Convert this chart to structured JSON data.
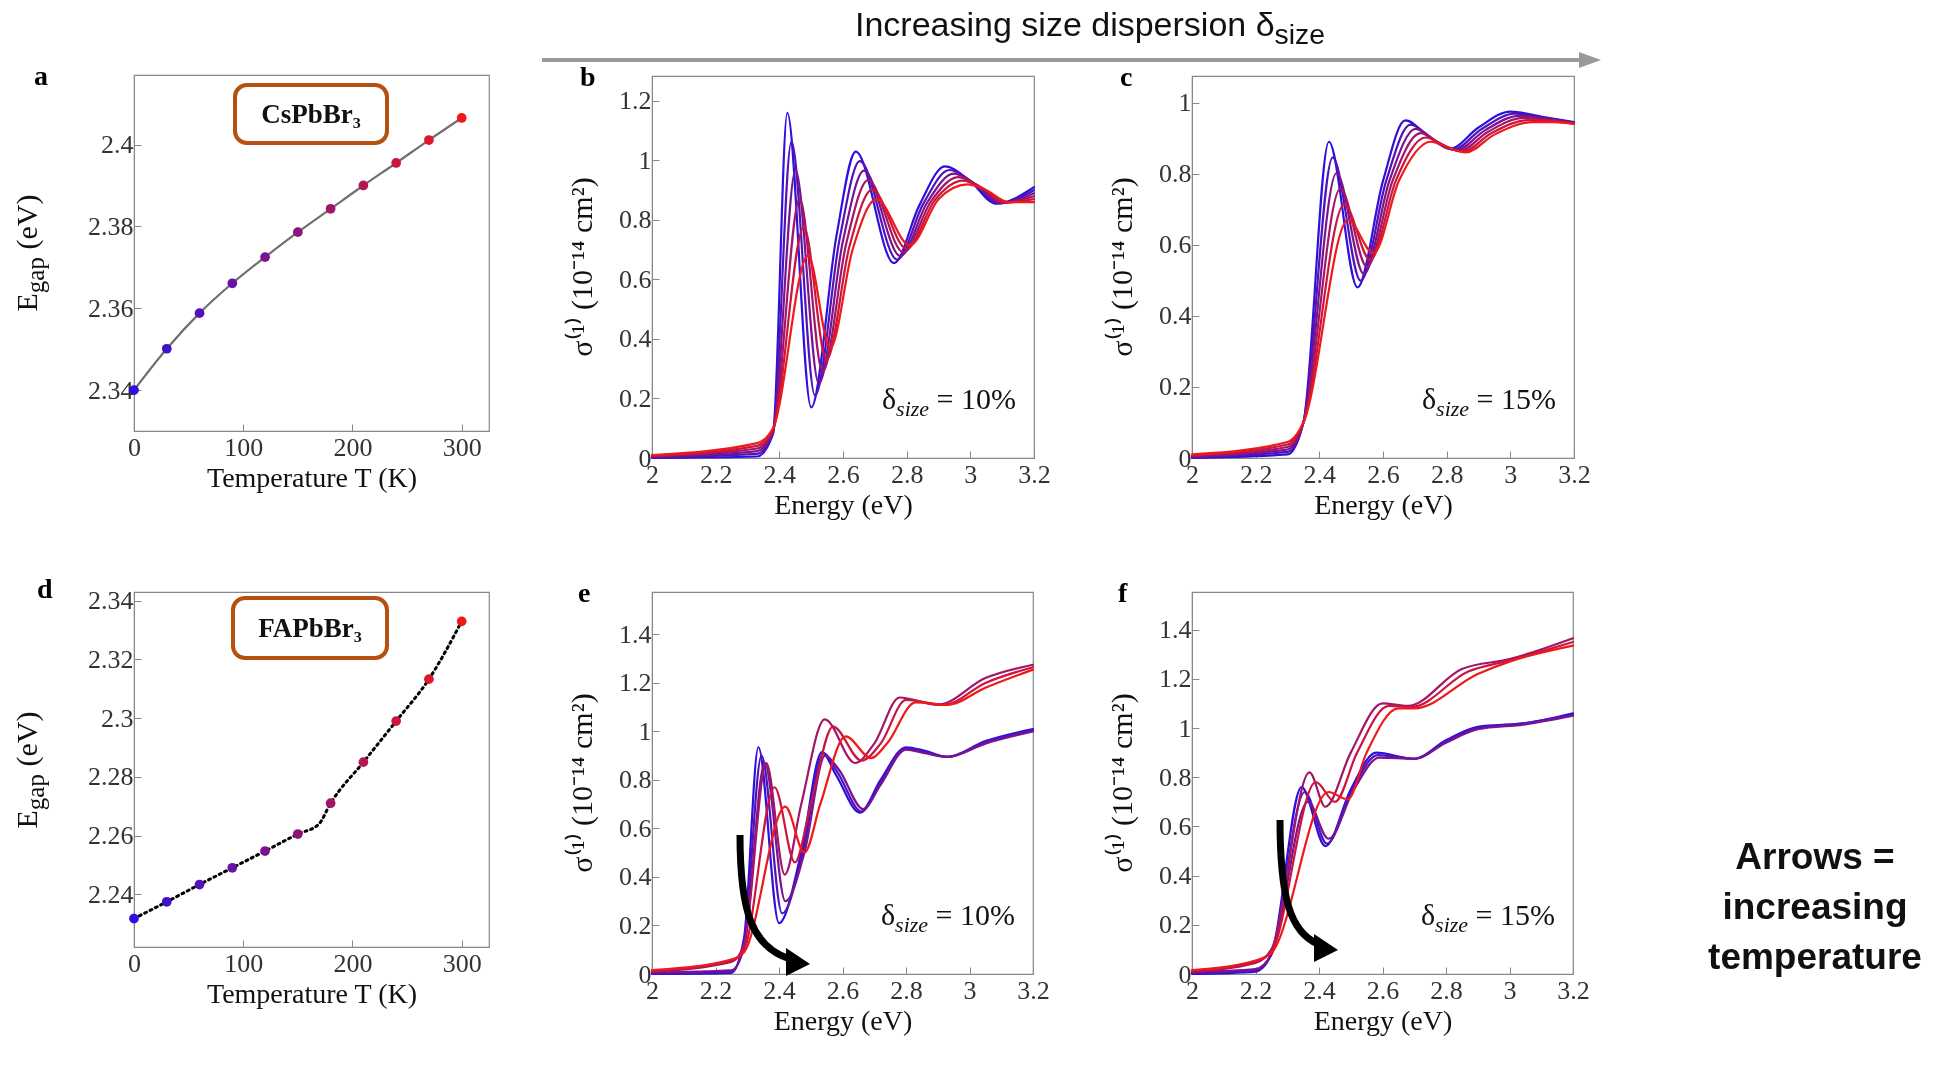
{
  "chart_data": [
    {
      "type": "scatter",
      "title": "a",
      "xlabel": "Temperature T (K)",
      "ylabel": "E$_{gap}$ (eV)",
      "annotations": [
        "CsPbBr₃"
      ],
      "x": [
        0,
        30,
        60,
        90,
        120,
        150,
        180,
        210,
        240,
        270,
        300
      ],
      "xlim": [
        0,
        325
      ],
      "xticks": [
        0,
        100,
        200,
        300
      ],
      "ylim": [
        2.33,
        2.417
      ],
      "yticks": [
        2.34,
        2.36,
        2.38,
        2.4
      ],
      "series": [
        {
          "type": "line",
          "color": "#707070",
          "line_style": "solid",
          "values": [
            2.34,
            2.3501,
            2.3588,
            2.3661,
            2.3725,
            2.3786,
            2.3843,
            2.39,
            2.3955,
            2.4011,
            2.4065
          ]
        },
        {
          "type": "scatter",
          "marker": "circle",
          "colors": [
            "#2c10e0",
            "#4011cc",
            "#5312b8",
            "#6712a4",
            "#7a1390",
            "#8e147c",
            "#a21568",
            "#b51654",
            "#c91640",
            "#dc172c",
            "#f01818"
          ],
          "values": [
            2.34,
            2.3501,
            2.3588,
            2.3661,
            2.3725,
            2.3786,
            2.3843,
            2.39,
            2.3955,
            2.4011,
            2.4065
          ]
        }
      ]
    },
    {
      "type": "line",
      "title": "b",
      "xlabel": "Energy (eV)",
      "ylabel": "σ⁽¹⁾ (10⁻¹⁴ cm²)",
      "annotations": [
        "δ$_{size}$ = 10%"
      ],
      "xlim": [
        2,
        3.2
      ],
      "xticks": [
        2,
        2.2,
        2.4,
        2.6,
        2.8,
        3,
        3.2
      ],
      "ylim": [
        0,
        1.284
      ],
      "yticks": [
        0,
        0.2,
        0.4,
        0.6,
        0.8,
        1,
        1.2
      ],
      "series": [
        {
          "color": "#2c10e0",
          "x": [
            2.0,
            2.33,
            2.38,
            2.425,
            2.5,
            2.58,
            2.64,
            2.76,
            2.84,
            2.92,
            3.0,
            3.08,
            3.2
          ],
          "values": [
            0,
            0.005,
            0.08,
            1.16,
            0.17,
            0.75,
            1.03,
            0.655,
            0.85,
            0.98,
            0.93,
            0.855,
            0.91
          ]
        },
        {
          "color": "#5312b8",
          "x": [
            2.0,
            2.33,
            2.38,
            2.438,
            2.512,
            2.59,
            2.653,
            2.77,
            2.852,
            2.934,
            3.01,
            3.088,
            3.2
          ],
          "values": [
            0.002,
            0.014,
            0.084,
            1.064,
            0.21,
            0.74,
            0.998,
            0.667,
            0.854,
            0.968,
            0.924,
            0.856,
            0.9
          ]
        },
        {
          "color": "#7a1390",
          "x": [
            2.0,
            2.33,
            2.38,
            2.451,
            2.524,
            2.6,
            2.666,
            2.78,
            2.864,
            2.948,
            3.02,
            3.096,
            3.2
          ],
          "values": [
            0.004,
            0.023,
            0.088,
            0.968,
            0.25,
            0.73,
            0.966,
            0.679,
            0.858,
            0.956,
            0.918,
            0.857,
            0.89
          ]
        },
        {
          "color": "#a21568",
          "x": [
            2.0,
            2.33,
            2.38,
            2.464,
            2.536,
            2.61,
            2.679,
            2.79,
            2.876,
            2.962,
            3.03,
            3.104,
            3.2
          ],
          "values": [
            0.006,
            0.032,
            0.092,
            0.872,
            0.29,
            0.72,
            0.934,
            0.691,
            0.862,
            0.944,
            0.912,
            0.858,
            0.88
          ]
        },
        {
          "color": "#c91640",
          "x": [
            2.0,
            2.33,
            2.38,
            2.477,
            2.548,
            2.62,
            2.692,
            2.8,
            2.888,
            2.976,
            3.04,
            3.112,
            3.2
          ],
          "values": [
            0.008,
            0.041,
            0.096,
            0.776,
            0.33,
            0.71,
            0.902,
            0.703,
            0.866,
            0.932,
            0.906,
            0.859,
            0.87
          ]
        },
        {
          "color": "#f01818",
          "x": [
            2.0,
            2.33,
            2.38,
            2.49,
            2.56,
            2.63,
            2.705,
            2.81,
            2.9,
            2.99,
            3.05,
            3.12,
            3.2
          ],
          "values": [
            0.01,
            0.05,
            0.1,
            0.68,
            0.37,
            0.7,
            0.87,
            0.715,
            0.87,
            0.92,
            0.9,
            0.86,
            0.86
          ]
        }
      ]
    },
    {
      "type": "line",
      "title": "c",
      "xlabel": "Energy (eV)",
      "ylabel": "σ⁽¹⁾ (10⁻¹⁴ cm²)",
      "annotations": [
        "δ$_{size}$ = 15%"
      ],
      "xlim": [
        2,
        3.2
      ],
      "xticks": [
        2,
        2.2,
        2.4,
        2.6,
        2.8,
        3,
        3.2
      ],
      "ylim": [
        0,
        1.075
      ],
      "yticks": [
        0,
        0.2,
        0.4,
        0.6,
        0.8,
        1
      ],
      "series": [
        {
          "color": "#2c10e0",
          "x": [
            2.0,
            2.3,
            2.35,
            2.43,
            2.52,
            2.6,
            2.67,
            2.75,
            2.81,
            2.9,
            3.0,
            3.1,
            3.2
          ],
          "values": [
            0,
            0.01,
            0.1,
            0.89,
            0.48,
            0.78,
            0.95,
            0.9,
            0.87,
            0.93,
            0.975,
            0.96,
            0.945
          ]
        },
        {
          "color": "#5312b8",
          "x": [
            2.0,
            2.3,
            2.35,
            2.442,
            2.53,
            2.61,
            2.686,
            2.76,
            2.82,
            2.91,
            3.014,
            3.108,
            3.2
          ],
          "values": [
            0.002,
            0.017,
            0.1,
            0.846,
            0.499,
            0.78,
            0.938,
            0.895,
            0.868,
            0.926,
            0.969,
            0.957,
            0.944
          ]
        },
        {
          "color": "#7a1390",
          "x": [
            2.0,
            2.3,
            2.35,
            2.454,
            2.54,
            2.62,
            2.702,
            2.77,
            2.83,
            2.92,
            3.028,
            3.116,
            3.2
          ],
          "values": [
            0.004,
            0.024,
            0.1,
            0.802,
            0.518,
            0.78,
            0.926,
            0.89,
            0.866,
            0.922,
            0.963,
            0.954,
            0.943
          ]
        },
        {
          "color": "#a21568",
          "x": [
            2.0,
            2.3,
            2.35,
            2.466,
            2.55,
            2.63,
            2.718,
            2.78,
            2.84,
            2.93,
            3.042,
            3.124,
            3.2
          ],
          "values": [
            0.006,
            0.031,
            0.1,
            0.758,
            0.538,
            0.78,
            0.914,
            0.885,
            0.864,
            0.918,
            0.957,
            0.951,
            0.942
          ]
        },
        {
          "color": "#c91640",
          "x": [
            2.0,
            2.3,
            2.35,
            2.478,
            2.56,
            2.64,
            2.734,
            2.79,
            2.85,
            2.94,
            3.056,
            3.132,
            3.2
          ],
          "values": [
            0.008,
            0.038,
            0.1,
            0.714,
            0.557,
            0.78,
            0.902,
            0.88,
            0.862,
            0.914,
            0.951,
            0.948,
            0.941
          ]
        },
        {
          "color": "#f01818",
          "x": [
            2.0,
            2.3,
            2.35,
            2.49,
            2.57,
            2.65,
            2.75,
            2.8,
            2.86,
            2.95,
            3.07,
            3.14,
            3.2
          ],
          "values": [
            0.01,
            0.045,
            0.1,
            0.67,
            0.576,
            0.78,
            0.89,
            0.875,
            0.86,
            0.91,
            0.945,
            0.945,
            0.94
          ]
        }
      ]
    },
    {
      "type": "scatter",
      "title": "d",
      "xlabel": "Temperature T (K)",
      "ylabel": "E$_{gap}$ (eV)",
      "annotations": [
        "FAPbBr₃"
      ],
      "x": [
        0,
        30,
        60,
        90,
        120,
        150,
        180,
        210,
        240,
        270,
        300
      ],
      "xlim": [
        0,
        325
      ],
      "xticks": [
        0,
        100,
        200,
        300
      ],
      "ylim": [
        2.222,
        2.343
      ],
      "yticks": [
        2.24,
        2.26,
        2.28,
        2.3,
        2.32,
        2.34
      ],
      "series": [
        {
          "type": "line",
          "color": "#000000",
          "line_style": "dotted",
          "x": [
            0,
            30,
            60,
            90,
            120,
            150,
            169,
            180,
            210,
            240,
            270,
            300
          ],
          "values": [
            2.2317,
            2.2374,
            2.2433,
            2.249,
            2.2547,
            2.2605,
            2.2638,
            2.271,
            2.285,
            2.299,
            2.3133,
            2.333
          ]
        },
        {
          "type": "scatter",
          "marker": "circle",
          "colors": [
            "#2c10e0",
            "#4011cc",
            "#5312b8",
            "#6712a4",
            "#7a1390",
            "#8e147c",
            "#a21568",
            "#b51654",
            "#c91640",
            "#dc172c",
            "#f01818"
          ],
          "values": [
            2.2317,
            2.2374,
            2.2433,
            2.249,
            2.2547,
            2.2605,
            2.271,
            2.285,
            2.299,
            2.3133,
            2.333
          ]
        }
      ]
    },
    {
      "type": "line",
      "title": "e",
      "xlabel": "Energy (eV)",
      "ylabel": "σ⁽¹⁾ (10⁻¹⁴ cm²)",
      "annotations": [
        "δ$_{size}$ = 10%"
      ],
      "xlim": [
        2,
        3.2
      ],
      "xticks": [
        2,
        2.2,
        2.4,
        2.6,
        2.8,
        3,
        3.2
      ],
      "ylim": [
        0,
        1.575
      ],
      "yticks": [
        0,
        0.2,
        0.4,
        0.6,
        0.8,
        1,
        1.2,
        1.4
      ],
      "series": [
        {
          "color": "#2c10e0",
          "x": [
            2.0,
            2.25,
            2.29,
            2.335,
            2.4,
            2.47,
            2.535,
            2.58,
            2.655,
            2.72,
            2.8,
            2.86,
            2.93,
            3.05,
            3.2
          ],
          "values": [
            0,
            0.005,
            0.15,
            0.935,
            0.21,
            0.5,
            0.915,
            0.82,
            0.665,
            0.8,
            0.935,
            0.92,
            0.895,
            0.96,
            1.01
          ]
        },
        {
          "color": "#5312b8",
          "x": [
            2.0,
            2.25,
            2.29,
            2.345,
            2.41,
            2.475,
            2.54,
            2.585,
            2.66,
            2.72,
            2.8,
            2.86,
            2.93,
            3.05,
            3.2
          ],
          "values": [
            0.003,
            0.01,
            0.13,
            0.9,
            0.25,
            0.5,
            0.91,
            0.83,
            0.67,
            0.79,
            0.93,
            0.915,
            0.895,
            0.955,
            1.005
          ]
        },
        {
          "color": "#7a1390",
          "x": [
            2.0,
            2.25,
            2.29,
            2.355,
            2.42,
            2.48,
            2.545,
            2.59,
            2.665,
            2.72,
            2.8,
            2.86,
            2.93,
            3.05,
            3.2
          ],
          "values": [
            0.006,
            0.015,
            0.11,
            0.87,
            0.3,
            0.5,
            0.9,
            0.84,
            0.68,
            0.78,
            0.925,
            0.91,
            0.895,
            0.95,
            1.0
          ]
        },
        {
          "color": "#a21568",
          "x": [
            2.0,
            2.25,
            2.29,
            2.36,
            2.418,
            2.47,
            2.544,
            2.64,
            2.7,
            2.78,
            2.9,
            3.05,
            3.2
          ],
          "values": [
            0.01,
            0.05,
            0.12,
            0.87,
            0.41,
            0.7,
            1.05,
            0.87,
            0.95,
            1.14,
            1.11,
            1.22,
            1.275
          ]
        },
        {
          "color": "#c91640",
          "x": [
            2.0,
            2.25,
            2.29,
            2.386,
            2.45,
            2.5,
            2.57,
            2.66,
            2.72,
            2.8,
            2.92,
            3.05,
            3.2
          ],
          "values": [
            0.013,
            0.055,
            0.1,
            0.77,
            0.46,
            0.7,
            1.02,
            0.88,
            0.95,
            1.13,
            1.11,
            1.2,
            1.265
          ]
        },
        {
          "color": "#f01818",
          "x": [
            2.0,
            2.25,
            2.29,
            2.42,
            2.48,
            2.53,
            2.61,
            2.69,
            2.74,
            2.83,
            2.93,
            3.05,
            3.2
          ],
          "values": [
            0.016,
            0.06,
            0.09,
            0.69,
            0.5,
            0.7,
            0.98,
            0.89,
            0.95,
            1.12,
            1.11,
            1.18,
            1.255
          ]
        }
      ]
    },
    {
      "type": "line",
      "title": "f",
      "xlabel": "Energy (eV)",
      "ylabel": "σ⁽¹⁾ (10⁻¹⁴ cm²)",
      "annotations": [
        "δ$_{size}$ = 15%"
      ],
      "xlim": [
        2,
        3.2
      ],
      "xticks": [
        2,
        2.2,
        2.4,
        2.6,
        2.8,
        3,
        3.2
      ],
      "ylim": [
        0,
        1.553
      ],
      "yticks": [
        0,
        0.2,
        0.4,
        0.6,
        0.8,
        1,
        1.2,
        1.4
      ],
      "series": [
        {
          "color": "#2c10e0",
          "x": [
            2.0,
            2.2,
            2.25,
            2.345,
            2.42,
            2.5,
            2.58,
            2.7,
            2.8,
            2.9,
            3.05,
            3.2
          ],
          "values": [
            0,
            0.01,
            0.08,
            0.76,
            0.52,
            0.75,
            0.9,
            0.875,
            0.95,
            1.005,
            1.02,
            1.06
          ]
        },
        {
          "color": "#5312b8",
          "x": [
            2.0,
            2.2,
            2.25,
            2.355,
            2.425,
            2.505,
            2.585,
            2.7,
            2.8,
            2.9,
            3.05,
            3.2
          ],
          "values": [
            0.004,
            0.015,
            0.08,
            0.74,
            0.53,
            0.75,
            0.89,
            0.875,
            0.945,
            1.0,
            1.02,
            1.055
          ]
        },
        {
          "color": "#7a1390",
          "x": [
            2.0,
            2.2,
            2.25,
            2.365,
            2.43,
            2.51,
            2.59,
            2.7,
            2.8,
            2.9,
            3.05,
            3.2
          ],
          "values": [
            0.008,
            0.02,
            0.08,
            0.7,
            0.55,
            0.75,
            0.88,
            0.875,
            0.94,
            0.995,
            1.015,
            1.05
          ]
        },
        {
          "color": "#a21568",
          "x": [
            2.0,
            2.2,
            2.25,
            2.37,
            2.42,
            2.5,
            2.6,
            2.68,
            2.85,
            3.0,
            3.2
          ],
          "values": [
            0.01,
            0.045,
            0.1,
            0.82,
            0.68,
            0.9,
            1.1,
            1.09,
            1.24,
            1.28,
            1.365
          ]
        },
        {
          "color": "#c91640",
          "x": [
            2.0,
            2.2,
            2.25,
            2.39,
            2.45,
            2.52,
            2.62,
            2.69,
            2.87,
            3.0,
            3.2
          ],
          "values": [
            0.013,
            0.05,
            0.09,
            0.78,
            0.7,
            0.9,
            1.09,
            1.085,
            1.23,
            1.275,
            1.35
          ]
        },
        {
          "color": "#f01818",
          "x": [
            2.0,
            2.2,
            2.25,
            2.43,
            2.49,
            2.55,
            2.65,
            2.7,
            2.9,
            3.0,
            3.2
          ],
          "values": [
            0.016,
            0.055,
            0.085,
            0.74,
            0.71,
            0.9,
            1.08,
            1.08,
            1.22,
            1.27,
            1.335
          ]
        }
      ]
    },
    {
      "type": "other",
      "annotations": [
        "Increasing size dispersion δ$_{size}$",
        "Arrows = increasing temperature"
      ]
    }
  ]
}
